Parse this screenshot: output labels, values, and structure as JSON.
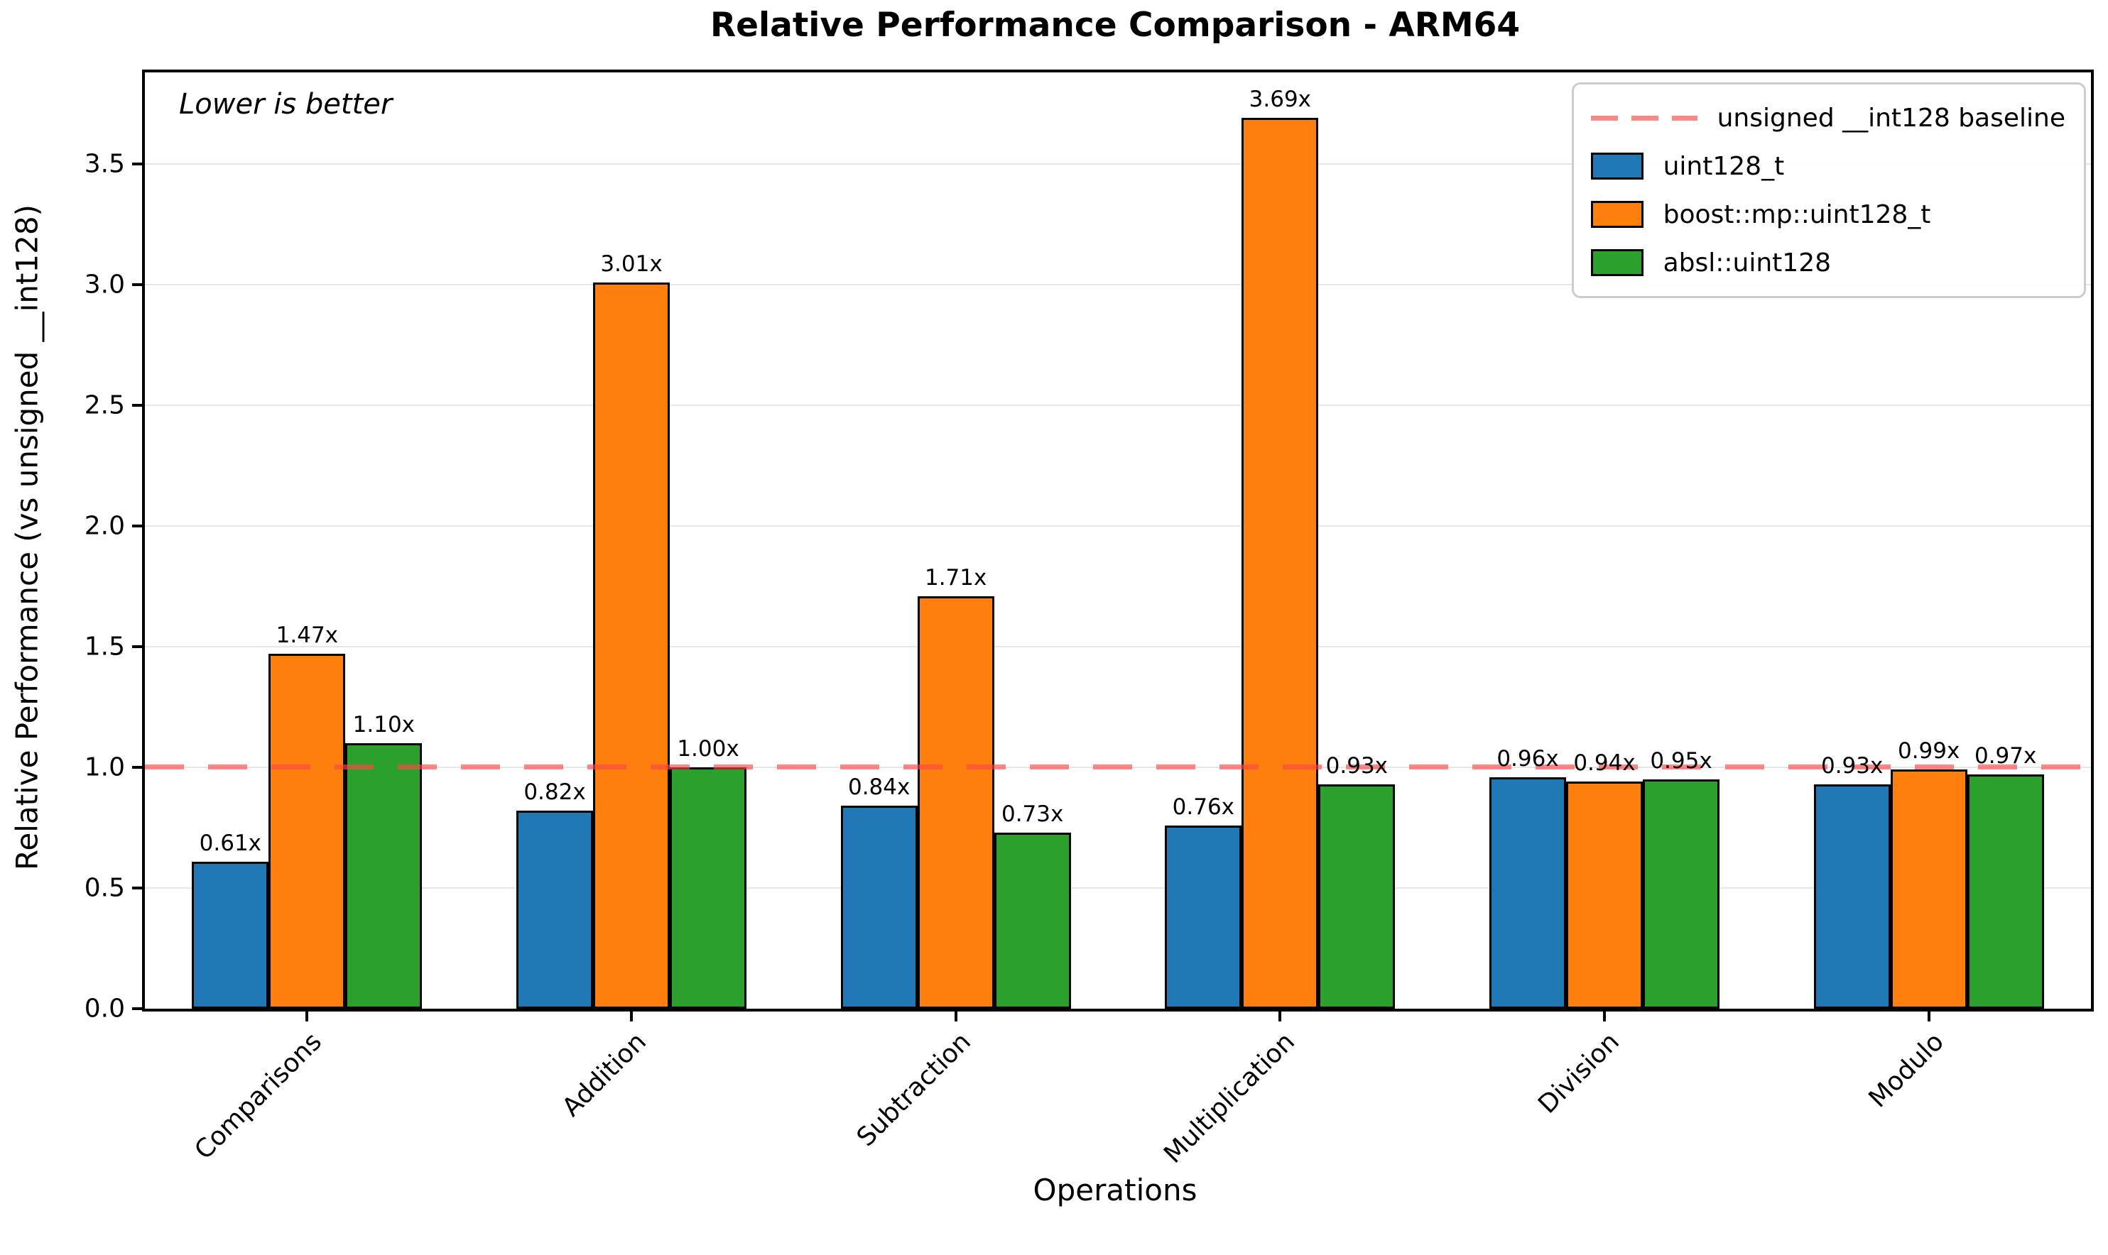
{
  "title": "Relative Performance Comparison - ARM64",
  "annotation": "Lower is better",
  "axis": {
    "xlabel": "Operations",
    "ylabel": "Relative Performance (vs unsigned __int128)"
  },
  "legend": {
    "baseline_label": "unsigned __int128 baseline",
    "entries": [
      "uint128_t",
      "boost::mp::uint128_t",
      "absl::uint128"
    ]
  },
  "chart_data": {
    "type": "bar",
    "title": "Relative Performance Comparison - ARM64",
    "xlabel": "Operations",
    "ylabel": "Relative Performance (vs unsigned __int128)",
    "categories": [
      "Comparisons",
      "Addition",
      "Subtraction",
      "Multiplication",
      "Division",
      "Modulo"
    ],
    "series": [
      {
        "name": "uint128_t",
        "color": "#1f77b4",
        "values": [
          0.61,
          0.82,
          0.84,
          0.76,
          0.96,
          0.93
        ],
        "labels": [
          "0.61x",
          "0.82x",
          "0.84x",
          "0.76x",
          "0.96x",
          "0.93x"
        ]
      },
      {
        "name": "boost::mp::uint128_t",
        "color": "#ff7f0e",
        "values": [
          1.47,
          3.01,
          1.71,
          3.69,
          0.94,
          0.99
        ],
        "labels": [
          "1.47x",
          "3.01x",
          "1.71x",
          "3.69x",
          "0.94x",
          "0.99x"
        ]
      },
      {
        "name": "absl::uint128",
        "color": "#2ca02c",
        "values": [
          1.1,
          1.0,
          0.73,
          0.93,
          0.95,
          0.97
        ],
        "labels": [
          "1.10x",
          "1.00x",
          "0.73x",
          "0.93x",
          "0.95x",
          "0.97x"
        ]
      }
    ],
    "baseline": {
      "y": 1.0,
      "label": "unsigned __int128 baseline",
      "color": "#ff4646"
    },
    "annotation": "Lower is better",
    "yticks": [
      0.0,
      0.5,
      1.0,
      1.5,
      2.0,
      2.5,
      3.0,
      3.5
    ],
    "ylim": [
      0,
      3.879
    ],
    "grid": true,
    "grid_color": "#e6e6e6",
    "bar_edge_color": "#000000",
    "legend_position": "upper right"
  }
}
